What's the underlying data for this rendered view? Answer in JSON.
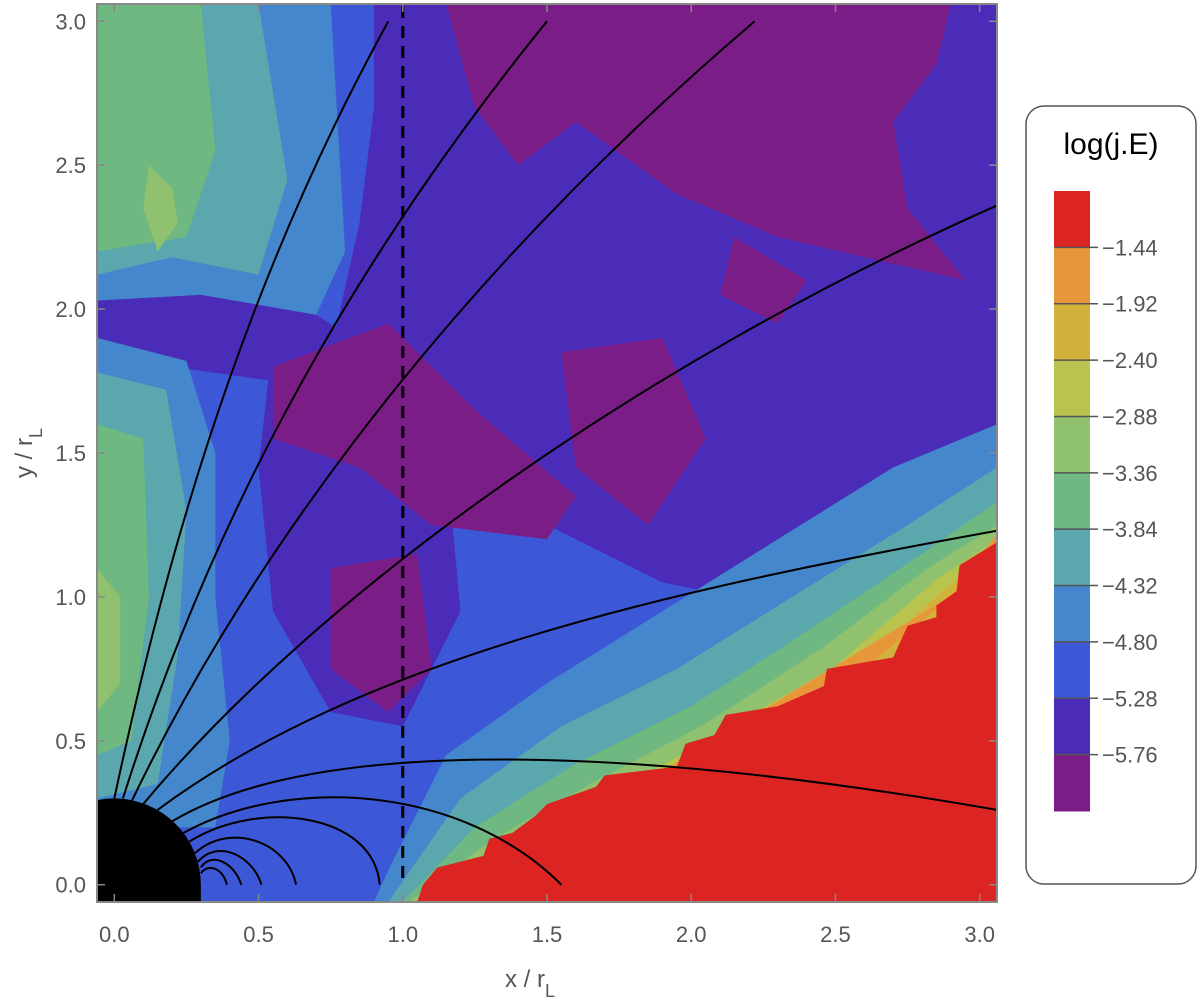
{
  "colors": {
    "bands": [
      "#7a1d87",
      "#4a2cb8",
      "#3d58d6",
      "#4587cc",
      "#5aa7ad",
      "#6fb882",
      "#8fc16e",
      "#b8c44e",
      "#d3b23c",
      "#e8963a",
      "#dc2422"
    ],
    "fieldline": "#000000",
    "star": "#000000",
    "frame": "#888888"
  },
  "chart_data": {
    "type": "heatmap",
    "title": "",
    "xlabel": "x / r",
    "xlabel_sub": "L",
    "ylabel": "y / r",
    "ylabel_sub": "L",
    "xlim": [
      -0.06,
      3.06
    ],
    "ylim": [
      -0.06,
      3.06
    ],
    "xticks": [
      0.0,
      0.5,
      1.0,
      1.5,
      2.0,
      2.5,
      3.0
    ],
    "xtick_labels": [
      "0.0",
      "0.5",
      "1.0",
      "1.5",
      "2.0",
      "2.5",
      "3.0"
    ],
    "yticks": [
      0.0,
      0.5,
      1.0,
      1.5,
      2.0,
      2.5,
      3.0
    ],
    "ytick_labels": [
      "0.0",
      "0.5",
      "1.0",
      "1.5",
      "2.0",
      "2.5",
      "3.0"
    ],
    "colorbar": {
      "title": "log(j.E)",
      "levels": [
        -1.44,
        -1.92,
        -2.4,
        -2.88,
        -3.36,
        -3.84,
        -4.32,
        -4.8,
        -5.28,
        -5.76
      ],
      "level_labels": [
        "−1.44",
        "−1.92",
        "−2.40",
        "−2.88",
        "−3.36",
        "−3.84",
        "−4.32",
        "−4.80",
        "−5.28",
        "−5.76"
      ]
    },
    "light_cylinder_x": 1.0,
    "star_radius": 0.3,
    "zones": [
      {
        "band": 2,
        "points": [
          [
            -0.06,
            -0.06
          ],
          [
            3.06,
            -0.06
          ],
          [
            3.06,
            3.06
          ],
          [
            -0.06,
            3.06
          ]
        ]
      },
      {
        "band": 1,
        "points": [
          [
            0.9,
            3.06
          ],
          [
            3.06,
            3.06
          ],
          [
            3.06,
            0.85
          ],
          [
            2.4,
            0.95
          ],
          [
            1.9,
            1.05
          ],
          [
            1.5,
            1.25
          ],
          [
            1.1,
            1.45
          ],
          [
            0.9,
            1.6
          ],
          [
            0.75,
            1.85
          ],
          [
            0.85,
            2.3
          ],
          [
            0.9,
            2.7
          ]
        ]
      },
      {
        "band": 1,
        "points": [
          [
            0.55,
            1.9
          ],
          [
            0.95,
            1.95
          ],
          [
            1.15,
            1.5
          ],
          [
            1.2,
            0.95
          ],
          [
            1.0,
            0.55
          ],
          [
            0.75,
            0.6
          ],
          [
            0.55,
            0.95
          ],
          [
            0.5,
            1.45
          ]
        ]
      },
      {
        "band": 1,
        "points": [
          [
            -0.06,
            2.03
          ],
          [
            0.3,
            2.05
          ],
          [
            0.7,
            1.98
          ],
          [
            0.9,
            1.85
          ],
          [
            0.55,
            1.75
          ],
          [
            0.2,
            1.8
          ],
          [
            -0.06,
            1.9
          ]
        ]
      },
      {
        "band": 0,
        "points": [
          [
            1.15,
            3.06
          ],
          [
            2.9,
            3.06
          ],
          [
            2.85,
            2.85
          ],
          [
            2.7,
            2.65
          ],
          [
            2.75,
            2.35
          ],
          [
            2.95,
            2.1
          ],
          [
            2.3,
            2.25
          ],
          [
            1.95,
            2.4
          ],
          [
            1.6,
            2.65
          ],
          [
            1.4,
            2.5
          ],
          [
            1.25,
            2.7
          ]
        ]
      },
      {
        "band": 0,
        "points": [
          [
            0.55,
            1.8
          ],
          [
            0.95,
            1.95
          ],
          [
            1.25,
            1.65
          ],
          [
            1.6,
            1.35
          ],
          [
            1.5,
            1.2
          ],
          [
            1.1,
            1.25
          ],
          [
            0.85,
            1.45
          ],
          [
            0.55,
            1.55
          ]
        ]
      },
      {
        "band": 0,
        "points": [
          [
            1.55,
            1.85
          ],
          [
            1.9,
            1.9
          ],
          [
            2.05,
            1.55
          ],
          [
            1.85,
            1.25
          ],
          [
            1.6,
            1.45
          ]
        ]
      },
      {
        "band": 0,
        "points": [
          [
            0.75,
            1.1
          ],
          [
            1.05,
            1.15
          ],
          [
            1.1,
            0.75
          ],
          [
            0.95,
            0.6
          ],
          [
            0.75,
            0.75
          ]
        ]
      },
      {
        "band": 0,
        "points": [
          [
            2.15,
            2.25
          ],
          [
            2.4,
            2.1
          ],
          [
            2.3,
            1.95
          ],
          [
            2.1,
            2.05
          ]
        ]
      },
      {
        "band": 3,
        "points": [
          [
            -0.06,
            2.03
          ],
          [
            0.3,
            2.05
          ],
          [
            0.7,
            1.98
          ],
          [
            0.8,
            2.2
          ],
          [
            0.75,
            3.06
          ],
          [
            -0.06,
            3.06
          ]
        ]
      },
      {
        "band": 3,
        "points": [
          [
            -0.06,
            1.9
          ],
          [
            0.25,
            1.82
          ],
          [
            0.35,
            1.5
          ],
          [
            0.35,
            1.0
          ],
          [
            0.4,
            0.5
          ],
          [
            0.35,
            0.2
          ],
          [
            -0.06,
            0.2
          ]
        ]
      },
      {
        "band": 4,
        "points": [
          [
            -0.06,
            2.12
          ],
          [
            0.2,
            2.18
          ],
          [
            0.5,
            2.12
          ],
          [
            0.6,
            2.45
          ],
          [
            0.5,
            3.06
          ],
          [
            -0.06,
            3.06
          ]
        ]
      },
      {
        "band": 4,
        "points": [
          [
            -0.06,
            1.78
          ],
          [
            0.18,
            1.72
          ],
          [
            0.25,
            1.3
          ],
          [
            0.22,
            0.8
          ],
          [
            0.15,
            0.35
          ],
          [
            -0.06,
            0.3
          ]
        ]
      },
      {
        "band": 5,
        "points": [
          [
            -0.06,
            2.2
          ],
          [
            0.25,
            2.25
          ],
          [
            0.35,
            2.55
          ],
          [
            0.3,
            3.06
          ],
          [
            -0.06,
            3.06
          ]
        ]
      },
      {
        "band": 5,
        "points": [
          [
            -0.06,
            1.6
          ],
          [
            0.1,
            1.55
          ],
          [
            0.12,
            1.0
          ],
          [
            0.06,
            0.5
          ],
          [
            -0.06,
            0.45
          ]
        ]
      },
      {
        "band": 6,
        "points": [
          [
            0.12,
            2.5
          ],
          [
            0.2,
            2.42
          ],
          [
            0.22,
            2.3
          ],
          [
            0.15,
            2.2
          ],
          [
            0.1,
            2.35
          ]
        ]
      },
      {
        "band": 6,
        "points": [
          [
            -0.06,
            1.1
          ],
          [
            0.02,
            1.0
          ],
          [
            0.02,
            0.7
          ],
          [
            -0.06,
            0.6
          ]
        ]
      },
      {
        "band": 3,
        "points": [
          [
            3.06,
            0.4
          ],
          [
            3.06,
            1.6
          ],
          [
            2.7,
            1.45
          ],
          [
            2.3,
            1.2
          ],
          [
            1.9,
            0.95
          ],
          [
            1.5,
            0.7
          ],
          [
            1.15,
            0.45
          ],
          [
            0.95,
            0.05
          ],
          [
            0.9,
            -0.06
          ],
          [
            1.9,
            -0.06
          ]
        ]
      },
      {
        "band": 4,
        "points": [
          [
            3.06,
            0.5
          ],
          [
            3.06,
            1.45
          ],
          [
            2.75,
            1.25
          ],
          [
            2.35,
            1.0
          ],
          [
            1.95,
            0.75
          ],
          [
            1.55,
            0.55
          ],
          [
            1.2,
            0.3
          ],
          [
            0.95,
            -0.06
          ],
          [
            1.7,
            -0.06
          ]
        ]
      },
      {
        "band": 5,
        "points": [
          [
            3.06,
            0.6
          ],
          [
            3.06,
            1.33
          ],
          [
            2.8,
            1.15
          ],
          [
            2.4,
            0.88
          ],
          [
            2.0,
            0.62
          ],
          [
            1.6,
            0.42
          ],
          [
            1.25,
            0.2
          ],
          [
            1.0,
            -0.06
          ],
          [
            1.5,
            -0.06
          ]
        ]
      },
      {
        "band": 6,
        "points": [
          [
            3.06,
            0.8
          ],
          [
            3.06,
            1.25
          ],
          [
            2.82,
            1.1
          ],
          [
            2.45,
            0.82
          ],
          [
            2.05,
            0.56
          ],
          [
            1.65,
            0.35
          ],
          [
            1.3,
            0.15
          ],
          [
            1.02,
            -0.06
          ],
          [
            1.35,
            -0.06
          ]
        ]
      },
      {
        "band": 7,
        "points": [
          [
            3.06,
            0.9
          ],
          [
            3.06,
            1.2
          ],
          [
            2.85,
            1.06
          ],
          [
            2.5,
            0.76
          ],
          [
            2.05,
            0.5
          ],
          [
            1.7,
            0.3
          ],
          [
            1.35,
            0.12
          ],
          [
            1.05,
            -0.06
          ],
          [
            1.25,
            -0.06
          ]
        ]
      },
      {
        "band": 8,
        "points": [
          [
            3.06,
            1.0
          ],
          [
            3.06,
            1.16
          ],
          [
            2.87,
            1.02
          ],
          [
            2.55,
            0.73
          ],
          [
            2.05,
            0.47
          ],
          [
            1.75,
            0.26
          ],
          [
            1.4,
            0.09
          ],
          [
            1.07,
            -0.06
          ],
          [
            1.2,
            -0.06
          ]
        ]
      },
      {
        "band": 9,
        "points": [
          [
            3.06,
            1.1
          ],
          [
            3.06,
            1.22
          ],
          [
            2.9,
            1.0
          ],
          [
            2.55,
            0.71
          ],
          [
            2.05,
            0.45
          ],
          [
            1.72,
            0.22
          ],
          [
            1.45,
            0.06
          ],
          [
            1.08,
            -0.06
          ],
          [
            1.15,
            -0.06
          ]
        ]
      },
      {
        "band": 10,
        "points": [
          [
            3.06,
            -0.06
          ],
          [
            3.06,
            1.19
          ],
          [
            2.93,
            1.11
          ],
          [
            2.92,
            1.02
          ],
          [
            2.85,
            0.97
          ],
          [
            2.85,
            0.93
          ],
          [
            2.75,
            0.9
          ],
          [
            2.7,
            0.79
          ],
          [
            2.47,
            0.75
          ],
          [
            2.46,
            0.69
          ],
          [
            2.3,
            0.62
          ],
          [
            2.12,
            0.59
          ],
          [
            2.08,
            0.52
          ],
          [
            1.98,
            0.49
          ],
          [
            1.95,
            0.41
          ],
          [
            1.7,
            0.38
          ],
          [
            1.67,
            0.34
          ],
          [
            1.5,
            0.28
          ],
          [
            1.46,
            0.24
          ],
          [
            1.38,
            0.18
          ],
          [
            1.3,
            0.16
          ],
          [
            1.28,
            0.1
          ],
          [
            1.12,
            0.06
          ],
          [
            1.07,
            0.0
          ],
          [
            1.05,
            -0.06
          ]
        ]
      }
    ],
    "fieldlines": [
      [
        [
          0.0,
          0.3
        ],
        [
          0.15,
          1.0
        ],
        [
          0.4,
          2.0
        ],
        [
          0.95,
          3.0
        ]
      ],
      [
        [
          0.03,
          0.3
        ],
        [
          0.25,
          1.0
        ],
        [
          0.65,
          1.95
        ],
        [
          1.5,
          3.0
        ]
      ],
      [
        [
          0.06,
          0.29
        ],
        [
          0.4,
          1.0
        ],
        [
          1.05,
          2.0
        ],
        [
          2.22,
          3.0
        ]
      ],
      [
        [
          0.1,
          0.28
        ],
        [
          0.7,
          1.0
        ],
        [
          1.8,
          1.8
        ],
        [
          3.06,
          2.36
        ]
      ],
      [
        [
          0.15,
          0.26
        ],
        [
          0.85,
          0.78
        ],
        [
          1.9,
          1.02
        ],
        [
          3.06,
          1.23
        ]
      ],
      [
        [
          0.2,
          0.22
        ],
        [
          0.7,
          0.52
        ],
        [
          1.8,
          0.48
        ],
        [
          3.06,
          0.26
        ]
      ],
      [
        [
          0.24,
          0.18
        ],
        [
          0.6,
          0.38
        ],
        [
          1.2,
          0.35
        ],
        [
          1.55,
          0.0
        ]
      ],
      [
        [
          0.26,
          0.15
        ],
        [
          0.5,
          0.3
        ],
        [
          0.9,
          0.25
        ],
        [
          0.92,
          0.0
        ]
      ],
      [
        [
          0.28,
          0.11
        ],
        [
          0.4,
          0.22
        ],
        [
          0.6,
          0.15
        ],
        [
          0.63,
          0.0
        ]
      ],
      [
        [
          0.29,
          0.08
        ],
        [
          0.36,
          0.16
        ],
        [
          0.48,
          0.1
        ],
        [
          0.51,
          0.0
        ]
      ],
      [
        [
          0.3,
          0.06
        ],
        [
          0.34,
          0.12
        ],
        [
          0.42,
          0.07
        ],
        [
          0.44,
          0.0
        ]
      ],
      [
        [
          0.3,
          0.04
        ],
        [
          0.33,
          0.08
        ],
        [
          0.38,
          0.05
        ],
        [
          0.39,
          0.0
        ]
      ]
    ]
  }
}
